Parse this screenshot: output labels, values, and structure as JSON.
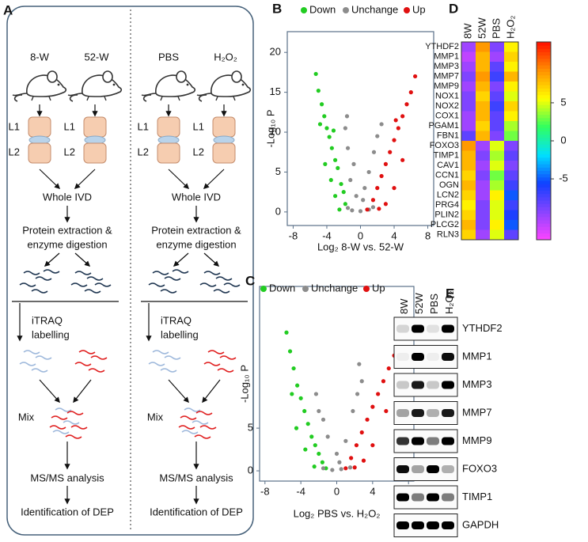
{
  "diagram": {
    "label": "A",
    "columns": [
      {
        "groups": [
          "8-W",
          "52-W"
        ],
        "vertebra_labels": [
          "L1",
          "L2",
          "L1",
          "L2"
        ],
        "whole": "Whole IVD",
        "extraction": [
          "Protein extraction &",
          "enzyme digestion"
        ],
        "labelling": [
          "iTRAQ",
          "labelling"
        ],
        "mix": "Mix",
        "analysis": "MS/MS analysis",
        "identification": "Identification of DEP"
      },
      {
        "groups": [
          "PBS",
          "H₂O₂"
        ],
        "vertebra_labels": [
          "L1",
          "L2",
          "L1",
          "L2"
        ],
        "whole": "Whole IVD",
        "extraction": [
          "Protein extraction &",
          "enzyme digestion"
        ],
        "labelling": [
          "iTRAQ",
          "labelling"
        ],
        "mix": "Mix",
        "analysis": "MS/MS analysis",
        "identification": "Identification of DEP"
      }
    ]
  },
  "chart_data": [
    {
      "type": "scatter",
      "label": "B",
      "xlabel": "Log₂ 8-W vs. 52-W",
      "ylabel": "-Log₁₀ P",
      "xlim": [
        -8.7,
        8.7
      ],
      "xticks": [
        -8,
        -4,
        0,
        4,
        8
      ],
      "ylim": [
        -1.7,
        22.6
      ],
      "yticks": [
        0,
        5,
        10,
        15,
        20
      ],
      "series": [
        {
          "name": "Down",
          "color": "#22cc22",
          "x": [
            -5.3,
            -5,
            -4.6,
            -4.3,
            -4,
            -3.7,
            -3.4,
            -3,
            -2.7,
            -3.5,
            -2.3,
            -2,
            -4.2,
            -3,
            -1.8,
            -2.5,
            -4.8,
            -3.2
          ],
          "values": [
            17.3,
            15.2,
            13.5,
            12,
            10.5,
            9.4,
            8,
            6.5,
            5.5,
            4,
            3.5,
            2.5,
            6,
            2,
            1,
            0.3,
            11,
            10.2
          ]
        },
        {
          "name": "Unchange",
          "color": "#8c8c8c",
          "x": [
            -1.5,
            -1,
            0,
            1,
            1.5,
            -1.2,
            -0.8,
            -1.5,
            -1.8,
            -1.6,
            0.5,
            1,
            1.6,
            2,
            2.5,
            -0.5,
            0.3
          ],
          "values": [
            0.5,
            0.2,
            0.1,
            0.3,
            0.6,
            4,
            6,
            8,
            10.5,
            12,
            3,
            5,
            7.5,
            9.5,
            11,
            2,
            1.5
          ]
        },
        {
          "name": "Up",
          "color": "#e01010",
          "x": [
            0.8,
            1.5,
            2,
            2.5,
            3,
            3.5,
            4,
            4.5,
            5,
            5.5,
            6,
            6.5,
            4,
            3,
            2.2,
            5,
            4.2
          ],
          "values": [
            0.3,
            1.5,
            3,
            4.5,
            6,
            7.5,
            9,
            10.5,
            12,
            13.5,
            15,
            17,
            3,
            1,
            0.4,
            6.5,
            11.5
          ]
        }
      ]
    },
    {
      "type": "scatter",
      "label": "C",
      "xlabel": "Log₂ PBS vs. H₂O₂",
      "ylabel": "-Log₁₀ P",
      "xlim": [
        -8.6,
        8.6
      ],
      "xticks": [
        -8,
        -4,
        0,
        4,
        8
      ],
      "ylim": [
        -1.2,
        21.6
      ],
      "yticks": [
        0,
        5
      ],
      "series": [
        {
          "name": "Down",
          "color": "#22cc22",
          "x": [
            -5.6,
            -5.2,
            -4.8,
            -4.4,
            -4,
            -3.6,
            -3.2,
            -2.8,
            -2.4,
            -2,
            -1.6,
            -1.2,
            -4.5,
            -3.5,
            -2.5,
            -5
          ],
          "values": [
            16.2,
            14,
            12,
            10,
            8.5,
            7,
            5.5,
            4,
            3,
            2,
            1,
            0.3,
            5,
            2.5,
            0.5,
            9
          ]
        },
        {
          "name": "Unchange",
          "color": "#8c8c8c",
          "x": [
            -1.5,
            -0.5,
            0.5,
            1.5,
            -2,
            -1.5,
            -1,
            0,
            1,
            1.8,
            2.3,
            2.8,
            2.5,
            -2.3,
            0.3
          ],
          "values": [
            0.3,
            0.1,
            0.2,
            0.4,
            7,
            6,
            4,
            2,
            3.5,
            7,
            9,
            10.5,
            12.5,
            9,
            1
          ]
        },
        {
          "name": "Up",
          "color": "#e01010",
          "x": [
            1,
            1.6,
            2.2,
            2.8,
            3.4,
            4,
            4.6,
            5.2,
            5.8,
            6.4,
            7,
            4,
            3,
            2,
            5.5
          ],
          "values": [
            0.3,
            1.5,
            3,
            4.5,
            6,
            7.5,
            9,
            10.5,
            12,
            13.5,
            16,
            3,
            1.2,
            0.4,
            7
          ]
        }
      ]
    },
    {
      "type": "heatmap",
      "label": "D",
      "columns": [
        "8W",
        "52W",
        "PBS",
        "H₂O₂"
      ],
      "rows": [
        "YTHDF2",
        "MMP1",
        "MMP3",
        "MMP7",
        "MMP9",
        "NOX1",
        "NOX2",
        "COX1",
        "PGAM1",
        "FBN1",
        "FOXO3",
        "TIMP1",
        "CAV1",
        "CCN1",
        "OGN",
        "LCN2",
        "PRG4",
        "PLIN2",
        "PLCG2",
        "RLN3"
      ],
      "values": [
        [
          -10,
          9,
          -9,
          6
        ],
        [
          -11,
          8,
          -10,
          7
        ],
        [
          -10,
          8,
          -8,
          6
        ],
        [
          -9,
          9,
          -7,
          8
        ],
        [
          -10,
          8,
          -9,
          6
        ],
        [
          -9,
          7,
          -8,
          5
        ],
        [
          -9,
          8,
          -7,
          7
        ],
        [
          -10,
          8,
          -8,
          6
        ],
        [
          -10,
          7,
          -8,
          4
        ],
        [
          -8,
          8,
          -9,
          3
        ],
        [
          9,
          -10,
          5,
          -9
        ],
        [
          8,
          -9,
          4,
          -8
        ],
        [
          8,
          -10,
          5,
          -9
        ],
        [
          7,
          -9,
          3,
          -8
        ],
        [
          8,
          -10,
          4,
          -7
        ],
        [
          7,
          -10,
          6,
          -5
        ],
        [
          6,
          -9,
          5,
          -7
        ],
        [
          7,
          -9,
          5,
          -6
        ],
        [
          8,
          -9,
          6,
          -5
        ],
        [
          7,
          -10,
          5,
          -8
        ]
      ],
      "clim": [
        -13,
        13
      ],
      "cticks": [
        -5,
        0,
        5
      ],
      "colormap": [
        "#ff44ff",
        "#8844ff",
        "#1040ff",
        "#00e0ff",
        "#30ff60",
        "#ffff00",
        "#ff9000",
        "#ff1000"
      ]
    }
  ],
  "blot": {
    "label": "E",
    "columns": [
      "8W",
      "52W",
      "PBS",
      "H₂O₂"
    ],
    "rows": [
      {
        "name": "YTHDF2",
        "intensity": [
          0.15,
          1,
          0.1,
          1
        ]
      },
      {
        "name": "MMP1",
        "intensity": [
          0.05,
          1,
          0.05,
          0.95
        ]
      },
      {
        "name": "MMP3",
        "intensity": [
          0.2,
          0.9,
          0.2,
          1
        ]
      },
      {
        "name": "MMP7",
        "intensity": [
          0.35,
          0.9,
          0.3,
          0.9
        ]
      },
      {
        "name": "MMP9",
        "intensity": [
          0.8,
          1,
          0.5,
          1
        ]
      },
      {
        "name": "FOXO3",
        "intensity": [
          0.95,
          0.35,
          1,
          0.3
        ]
      },
      {
        "name": "TIMP1",
        "intensity": [
          1,
          0.5,
          1,
          0.5
        ]
      },
      {
        "name": "GAPDH",
        "intensity": [
          1,
          1,
          1,
          1
        ]
      }
    ]
  }
}
